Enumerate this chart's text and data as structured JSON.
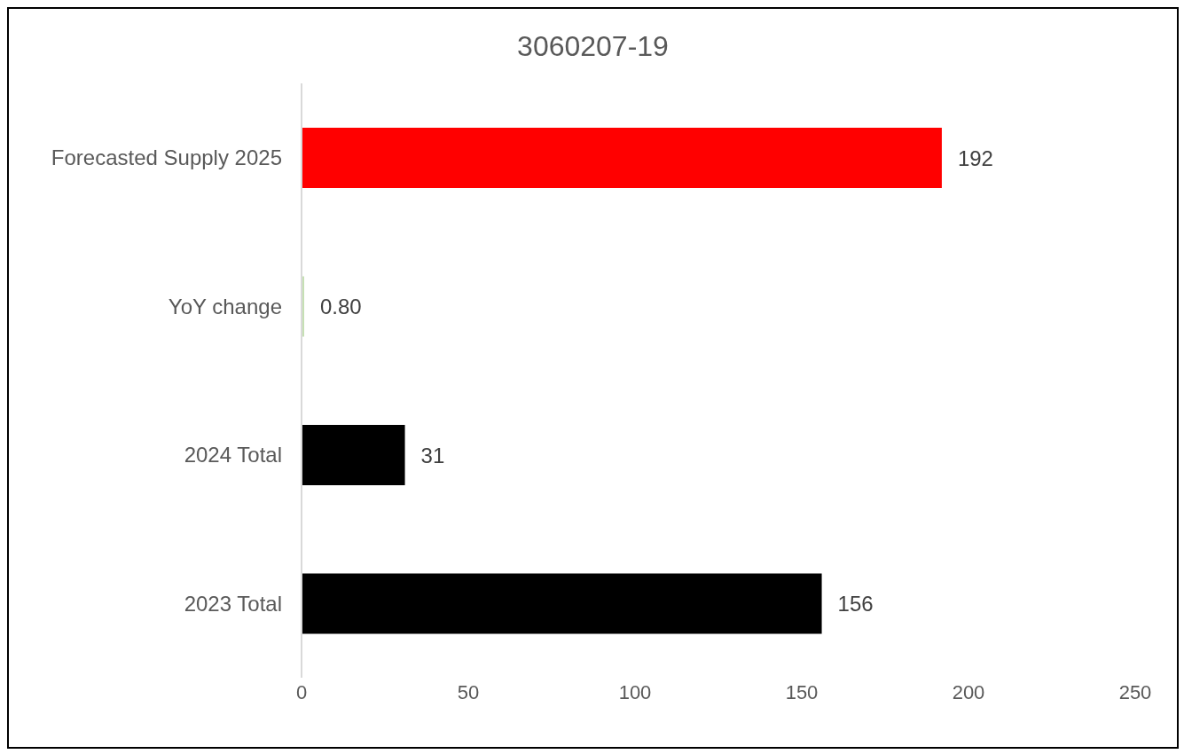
{
  "chart_data": {
    "type": "bar",
    "orientation": "horizontal",
    "title": "3060207-19",
    "categories": [
      "Forecasted Supply 2025",
      "YoY change",
      "2024 Total",
      "2023 Total"
    ],
    "values": [
      192,
      0.8,
      31,
      156
    ],
    "colors": [
      "#ff0000",
      "#c6e0b4",
      "#000000",
      "#000000"
    ],
    "value_labels": [
      "192",
      "0.80",
      "31",
      "156"
    ],
    "xlim": [
      0,
      250
    ],
    "xticks": [
      0,
      50,
      100,
      150,
      200,
      250
    ],
    "grid": false
  }
}
